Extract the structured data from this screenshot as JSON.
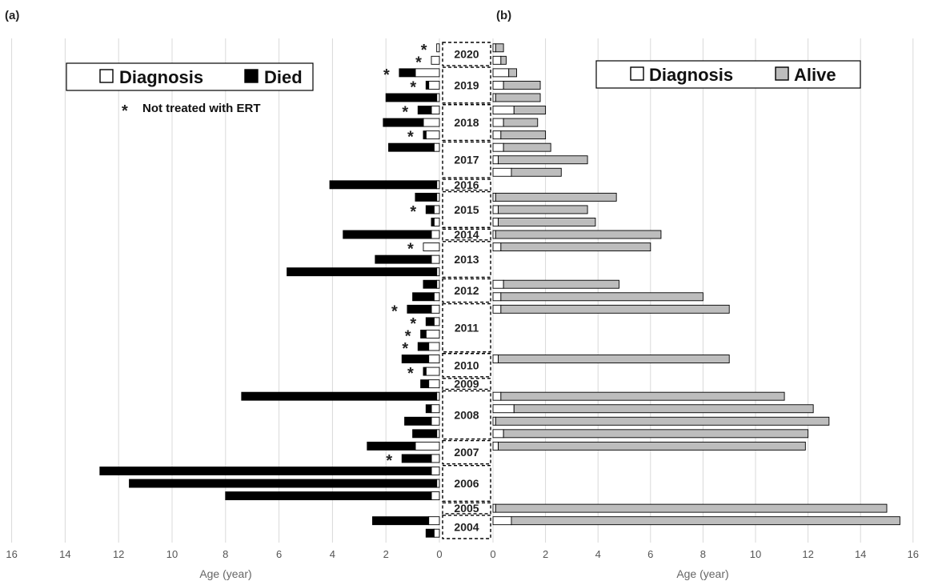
{
  "figure": {
    "panel_a_label": "(a)",
    "panel_b_label": "(b)",
    "xlabel_a": "Age (year)",
    "xlabel_b": "Age (year)",
    "legend_a": {
      "diagnosis": "Diagnosis",
      "died": "Died"
    },
    "legend_b": {
      "diagnosis": "Diagnosis",
      "alive": "Alive"
    },
    "note": "Not treated with ERT",
    "note_marker": "*"
  },
  "colors": {
    "died": "#000000",
    "alive": "#bdbdbd",
    "diagnosis": "#ffffff",
    "outline": "#000000",
    "grid": "#d9d9d9"
  },
  "chart_data": [
    {
      "type": "bar",
      "orientation": "horizontal",
      "title": "",
      "xlabel": "Age (year)",
      "xlim": [
        0,
        16
      ],
      "x_reversed": true,
      "xticks": [
        16,
        14,
        12,
        10,
        8,
        6,
        4,
        2,
        0
      ],
      "grid": "vertical",
      "legend": "top-left",
      "series_names": [
        "Diagnosis",
        "Died"
      ],
      "annotation": "* Not treated with ERT",
      "bars": [
        {
          "year": 2020,
          "diagnosis": 0.1,
          "end": 0.1,
          "star": true
        },
        {
          "year": 2020,
          "diagnosis": 0.3,
          "end": 0.3,
          "star": true
        },
        {
          "year": 2019,
          "diagnosis": 0.9,
          "end": 1.5,
          "star": true
        },
        {
          "year": 2019,
          "diagnosis": 0.4,
          "end": 0.5,
          "star": true
        },
        {
          "year": 2019,
          "diagnosis": 0.1,
          "end": 2.0,
          "star": false
        },
        {
          "year": 2018,
          "diagnosis": 0.3,
          "end": 0.8,
          "star": true
        },
        {
          "year": 2018,
          "diagnosis": 0.6,
          "end": 2.1,
          "star": false
        },
        {
          "year": 2018,
          "diagnosis": 0.5,
          "end": 0.6,
          "star": true
        },
        {
          "year": 2017,
          "diagnosis": 0.2,
          "end": 1.9,
          "star": false
        },
        {
          "year": 2016,
          "diagnosis": 0.1,
          "end": 4.1,
          "star": false
        },
        {
          "year": 2015,
          "diagnosis": 0.1,
          "end": 0.9,
          "star": false
        },
        {
          "year": 2015,
          "diagnosis": 0.2,
          "end": 0.5,
          "star": true
        },
        {
          "year": 2015,
          "diagnosis": 0.2,
          "end": 0.3,
          "star": false
        },
        {
          "year": 2014,
          "diagnosis": 0.3,
          "end": 3.6,
          "star": false
        },
        {
          "year": 2013,
          "diagnosis": 0.6,
          "end": 0.6,
          "star": true
        },
        {
          "year": 2013,
          "diagnosis": 0.3,
          "end": 2.4,
          "star": false
        },
        {
          "year": 2013,
          "diagnosis": 0.1,
          "end": 5.7,
          "star": false
        },
        {
          "year": 2012,
          "diagnosis": 0.1,
          "end": 0.6,
          "star": false
        },
        {
          "year": 2012,
          "diagnosis": 0.2,
          "end": 1.0,
          "star": false
        },
        {
          "year": 2011,
          "diagnosis": 0.3,
          "end": 1.2,
          "star": true
        },
        {
          "year": 2011,
          "diagnosis": 0.2,
          "end": 0.5,
          "star": true
        },
        {
          "year": 2011,
          "diagnosis": 0.5,
          "end": 0.7,
          "star": true
        },
        {
          "year": 2011,
          "diagnosis": 0.4,
          "end": 0.8,
          "star": true
        },
        {
          "year": 2010,
          "diagnosis": 0.4,
          "end": 1.4,
          "star": false
        },
        {
          "year": 2010,
          "diagnosis": 0.5,
          "end": 0.6,
          "star": true
        },
        {
          "year": 2009,
          "diagnosis": 0.4,
          "end": 0.7,
          "star": false
        },
        {
          "year": 2008,
          "diagnosis": 0.1,
          "end": 7.4,
          "star": false
        },
        {
          "year": 2008,
          "diagnosis": 0.3,
          "end": 0.5,
          "star": false
        },
        {
          "year": 2008,
          "diagnosis": 0.3,
          "end": 1.3,
          "star": false
        },
        {
          "year": 2008,
          "diagnosis": 0.1,
          "end": 1.0,
          "star": false
        },
        {
          "year": 2007,
          "diagnosis": 0.9,
          "end": 2.7,
          "star": false
        },
        {
          "year": 2007,
          "diagnosis": 0.3,
          "end": 1.4,
          "star": true
        },
        {
          "year": 2006,
          "diagnosis": 0.3,
          "end": 12.7,
          "star": false
        },
        {
          "year": 2006,
          "diagnosis": 0.1,
          "end": 11.6,
          "star": false
        },
        {
          "year": 2006,
          "diagnosis": 0.3,
          "end": 8.0,
          "star": false
        },
        {
          "year": 2004,
          "diagnosis": 0.4,
          "end": 2.5,
          "star": false
        },
        {
          "year": 2004,
          "diagnosis": 0.2,
          "end": 0.5,
          "star": false
        }
      ]
    },
    {
      "type": "bar",
      "orientation": "horizontal",
      "title": "",
      "xlabel": "Age (year)",
      "xlim": [
        0,
        16
      ],
      "xticks": [
        0,
        2,
        4,
        6,
        8,
        10,
        12,
        14,
        16
      ],
      "grid": "vertical",
      "legend": "top-right",
      "series_names": [
        "Diagnosis",
        "Alive"
      ],
      "bars": [
        {
          "year": 2020,
          "diagnosis": 0.1,
          "end": 0.4
        },
        {
          "year": 2020,
          "diagnosis": 0.3,
          "end": 0.5
        },
        {
          "year": 2019,
          "diagnosis": 0.6,
          "end": 0.9
        },
        {
          "year": 2019,
          "diagnosis": 0.4,
          "end": 1.8
        },
        {
          "year": 2019,
          "diagnosis": 0.1,
          "end": 1.8
        },
        {
          "year": 2018,
          "diagnosis": 0.8,
          "end": 2.0
        },
        {
          "year": 2018,
          "diagnosis": 0.4,
          "end": 1.7
        },
        {
          "year": 2018,
          "diagnosis": 0.3,
          "end": 2.0
        },
        {
          "year": 2017,
          "diagnosis": 0.4,
          "end": 2.2
        },
        {
          "year": 2017,
          "diagnosis": 0.2,
          "end": 3.6
        },
        {
          "year": 2017,
          "diagnosis": 0.7,
          "end": 2.6
        },
        {
          "year": 2015,
          "diagnosis": 0.1,
          "end": 4.7
        },
        {
          "year": 2015,
          "diagnosis": 0.2,
          "end": 3.6
        },
        {
          "year": 2015,
          "diagnosis": 0.2,
          "end": 3.9
        },
        {
          "year": 2014,
          "diagnosis": 0.1,
          "end": 6.4
        },
        {
          "year": 2013,
          "diagnosis": 0.3,
          "end": 6.0
        },
        {
          "year": 2012,
          "diagnosis": 0.4,
          "end": 4.8
        },
        {
          "year": 2012,
          "diagnosis": 0.3,
          "end": 8.0
        },
        {
          "year": 2011,
          "diagnosis": 0.3,
          "end": 9.0
        },
        {
          "year": 2010,
          "diagnosis": 0.2,
          "end": 9.0
        },
        {
          "year": 2008,
          "diagnosis": 0.3,
          "end": 11.1
        },
        {
          "year": 2008,
          "diagnosis": 0.8,
          "end": 12.2
        },
        {
          "year": 2008,
          "diagnosis": 0.1,
          "end": 12.8
        },
        {
          "year": 2008,
          "diagnosis": 0.4,
          "end": 12.0
        },
        {
          "year": 2007,
          "diagnosis": 0.2,
          "end": 11.9
        },
        {
          "year": 2005,
          "diagnosis": 0.1,
          "end": 15.0
        },
        {
          "year": 2004,
          "diagnosis": 0.7,
          "end": 15.5
        }
      ]
    }
  ]
}
